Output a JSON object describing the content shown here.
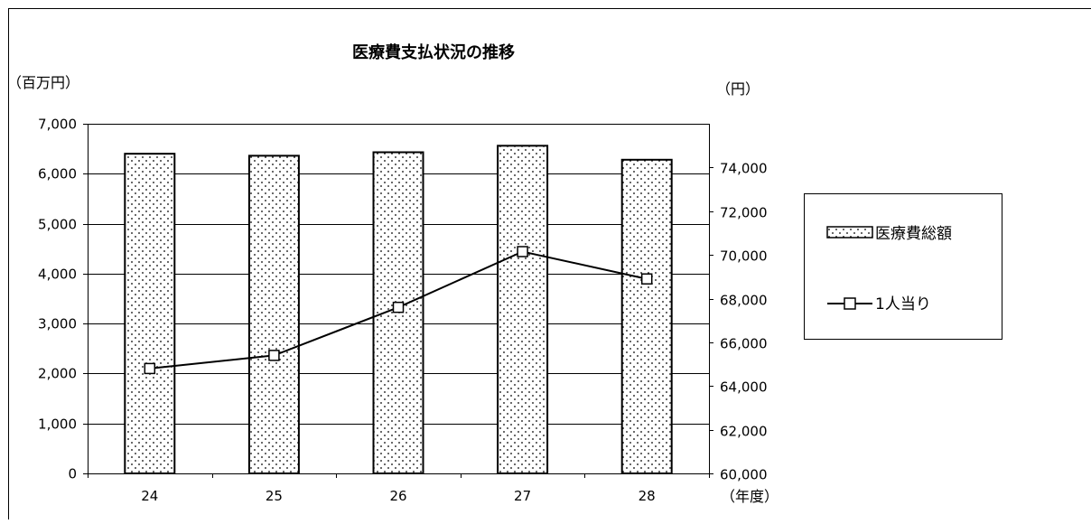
{
  "chart_data": {
    "type": "bar+line",
    "title": "医療費支払状況の推移",
    "categories": [
      "24",
      "25",
      "26",
      "27",
      "28"
    ],
    "x_unit_label": "（年度）",
    "left_axis": {
      "unit_label": "（百万円）",
      "range": [
        0,
        7000
      ],
      "ticks": [
        0,
        1000,
        2000,
        3000,
        4000,
        5000,
        6000,
        7000
      ],
      "tick_labels": [
        "0",
        "1,000",
        "2,000",
        "3,000",
        "4,000",
        "5,000",
        "6,000",
        "7,000"
      ]
    },
    "right_axis": {
      "unit_label": "（円）",
      "range": [
        60000,
        76000
      ],
      "ticks": [
        60000,
        62000,
        64000,
        66000,
        68000,
        70000,
        72000,
        74000
      ],
      "tick_labels": [
        "60,000",
        "62,000",
        "64,000",
        "66,000",
        "68,000",
        "70,000",
        "72,000",
        "74,000"
      ]
    },
    "series": [
      {
        "name": "医療費総額",
        "type": "bar",
        "axis": "left",
        "pattern": "dotted",
        "values": [
          6400,
          6360,
          6430,
          6560,
          6280
        ]
      },
      {
        "name": "1人当り",
        "type": "line",
        "axis": "right",
        "marker": "square",
        "values": [
          64800,
          65400,
          67600,
          70150,
          68900
        ]
      }
    ],
    "grid": true,
    "legend_position": "right"
  }
}
